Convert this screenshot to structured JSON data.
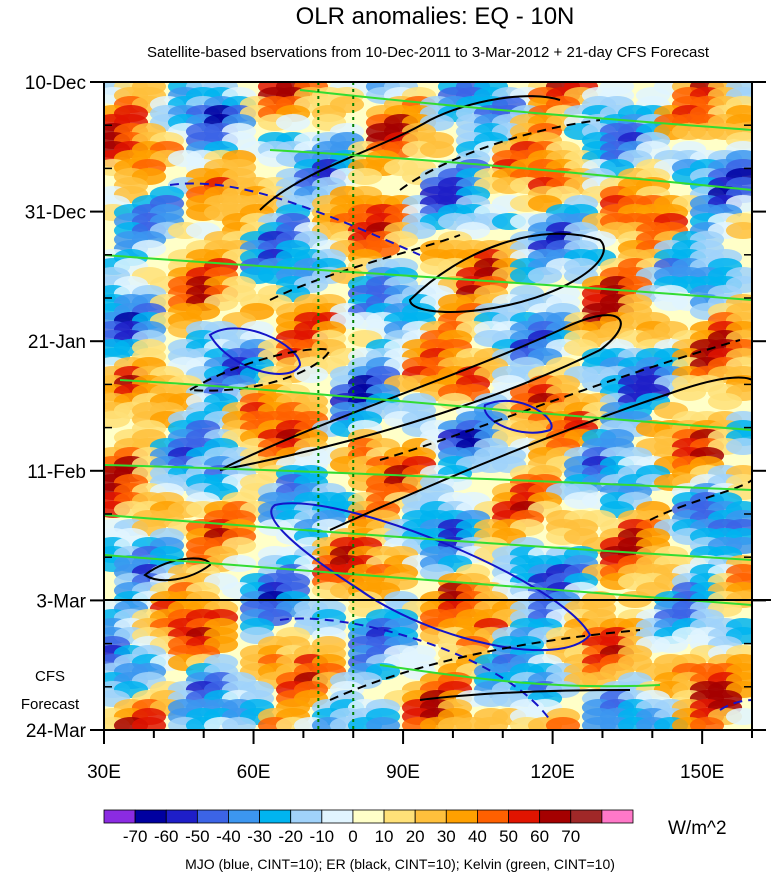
{
  "chart_data": {
    "type": "heatmap",
    "title": "OLR anomalies: EQ - 10N",
    "subtitle": "Satellite-based bservations from 10-Dec-2011 to 3-Mar-2012 + 21-day CFS Forecast",
    "xlabel": "",
    "ylabel": "",
    "xlim": [
      30,
      160
    ],
    "ylim_days": [
      0,
      105
    ],
    "x_ticks": [
      {
        "value": 30,
        "label": "30E"
      },
      {
        "value": 60,
        "label": "60E"
      },
      {
        "value": 90,
        "label": "90E"
      },
      {
        "value": 120,
        "label": "120E"
      },
      {
        "value": 150,
        "label": "150E"
      }
    ],
    "y_ticks": [
      {
        "day": 0,
        "label": "10-Dec"
      },
      {
        "day": 21,
        "label": "31-Dec"
      },
      {
        "day": 42,
        "label": "21-Jan"
      },
      {
        "day": 63,
        "label": "11-Feb"
      },
      {
        "day": 84,
        "label": "3-Mar"
      },
      {
        "day": 105,
        "label": "24-Mar"
      }
    ],
    "forecast_start_day": 84,
    "forecast_label_line1": "CFS",
    "forecast_label_line2": "Forecast",
    "reference_lines_lon": [
      73,
      80
    ],
    "colorbar": {
      "labels": [
        "-70",
        "-60",
        "-50",
        "-40",
        "-30",
        "-20",
        "-10",
        "0",
        "10",
        "20",
        "30",
        "40",
        "50",
        "60",
        "70"
      ],
      "colors": [
        "#8b2be2",
        "#0000a0",
        "#1e1ec8",
        "#3c64e6",
        "#3c96f0",
        "#00b4f0",
        "#a0d2fa",
        "#e1f5ff",
        "#ffffc8",
        "#ffe178",
        "#ffc03c",
        "#ffa000",
        "#ff6000",
        "#e11400",
        "#a50000",
        "#a02828",
        "#ff78c8"
      ],
      "unit": "W/m^2"
    },
    "footer": "MJO (blue, CINT=10); ER (black, CINT=10); Kelvin (green, CINT=10)",
    "contour_colors": {
      "mjo": "#1414c8",
      "er": "#000000",
      "kelvin": "#32dc32",
      "ref": "#008000"
    }
  }
}
